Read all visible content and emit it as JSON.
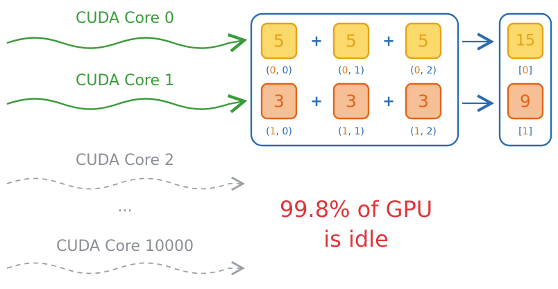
{
  "cores": {
    "core0": "CUDA Core 0",
    "core1": "CUDA Core 1",
    "core2": "CUDA Core 2",
    "ellipsis": "...",
    "core10000": "CUDA Core 10000"
  },
  "matrix": {
    "operator": "+",
    "rows": [
      {
        "values": [
          "5",
          "5",
          "5"
        ],
        "indices": [
          [
            "0",
            "0"
          ],
          [
            "0",
            "1"
          ],
          [
            "0",
            "2"
          ]
        ],
        "result": "15",
        "result_index": "0"
      },
      {
        "values": [
          "3",
          "3",
          "3"
        ],
        "indices": [
          [
            "1",
            "0"
          ],
          [
            "1",
            "1"
          ],
          [
            "1",
            "2"
          ]
        ],
        "result": "9",
        "result_index": "1"
      }
    ]
  },
  "status": {
    "line1": "99.8% of GPU",
    "line2": "is idle"
  },
  "colors": {
    "active_green": "#3a9b3a",
    "idle_gray": "#8a8f96",
    "box_blue": "#2b6cb0",
    "row0_fill": "#fbd96a",
    "row0_stroke": "#e8a317",
    "row1_fill": "#f7bf95",
    "row1_stroke": "#e0661b",
    "status_red": "#e0353b"
  }
}
